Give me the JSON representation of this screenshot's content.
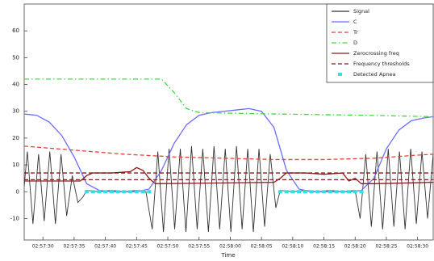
{
  "chart_data": {
    "type": "line",
    "x_label": "Time",
    "xlim": [
      0,
      65.5
    ],
    "ylim": [
      -18,
      70
    ],
    "xticks": [
      {
        "value": 3,
        "label": "02:57:30"
      },
      {
        "value": 8,
        "label": "02:57:35"
      },
      {
        "value": 13,
        "label": "02:57:40"
      },
      {
        "value": 18,
        "label": "02:57:45"
      },
      {
        "value": 23,
        "label": "02:57:50"
      },
      {
        "value": 28,
        "label": "02:57:55"
      },
      {
        "value": 33,
        "label": "02:58:00"
      },
      {
        "value": 38,
        "label": "02:58:05"
      },
      {
        "value": 43,
        "label": "02:58:10"
      },
      {
        "value": 48,
        "label": "02:58:15"
      },
      {
        "value": 53,
        "label": "02:58:20"
      },
      {
        "value": 58,
        "label": "02:58:25"
      },
      {
        "value": 63,
        "label": "02:58:30"
      }
    ],
    "yticks": [
      -10,
      0,
      10,
      20,
      30,
      40,
      50,
      60
    ],
    "legend": "upper right",
    "series": [
      {
        "name": "Signal",
        "color": "#333333",
        "style": "solid",
        "x": [
          0,
          0.5,
          1.4,
          2.3,
          3.2,
          4.1,
          5.0,
          5.9,
          6.8,
          7.7,
          8.6,
          9.4,
          10,
          12,
          14,
          16,
          18,
          19.5,
          20.5,
          21.4,
          22.3,
          23.2,
          24.1,
          25.0,
          25.9,
          26.8,
          27.7,
          28.6,
          29.5,
          30.4,
          31.3,
          32.2,
          33.1,
          34.0,
          34.9,
          35.8,
          36.7,
          37.6,
          38.5,
          39.4,
          40.3,
          41,
          43,
          45,
          47,
          49,
          51,
          53,
          53.8,
          54.7,
          55.6,
          56.5,
          57.4,
          58.3,
          59.2,
          60.1,
          61,
          61.9,
          62.8,
          63.7,
          64.6,
          65.5
        ],
        "values": [
          2,
          15,
          -12,
          14,
          -11,
          15,
          -12,
          14,
          -9,
          6,
          -4,
          -2,
          0.5,
          0,
          0.5,
          0,
          0.5,
          0,
          -14,
          15,
          -15,
          16,
          -14,
          16,
          -15,
          17,
          -14,
          16,
          -15,
          17,
          -14,
          16,
          -15,
          17,
          -14,
          16,
          -15,
          16,
          -13,
          14,
          -6,
          0.5,
          0,
          0.5,
          0,
          0.5,
          0,
          0.5,
          -10,
          14,
          -13,
          15,
          -14,
          16,
          -13,
          15,
          -14,
          16,
          -12,
          15,
          -10,
          14
        ]
      },
      {
        "name": "C",
        "color": "#6b6bff",
        "style": "solid",
        "x": [
          0,
          2,
          4,
          6,
          8,
          10,
          12,
          14,
          16,
          18,
          20,
          22,
          24,
          26,
          28,
          30,
          32,
          34,
          36,
          38,
          40,
          42,
          44,
          46,
          48,
          50,
          52,
          54,
          56,
          58,
          60,
          62,
          64,
          65.5
        ],
        "values": [
          29,
          28.5,
          26,
          21,
          13,
          3,
          0.5,
          0,
          0,
          0,
          1,
          8,
          18,
          25,
          28.5,
          29.5,
          30,
          30.5,
          31,
          30,
          24,
          8,
          1,
          0,
          0,
          0,
          0,
          0.5,
          5,
          16,
          23,
          26.5,
          27.5,
          28
        ]
      },
      {
        "name": "Tr",
        "color": "#e8403a",
        "style": "dashed",
        "x": [
          0,
          8,
          16,
          24,
          32,
          40,
          48,
          56,
          62,
          65.5
        ],
        "values": [
          17,
          15.5,
          14,
          13,
          12.5,
          12,
          12,
          12.5,
          13.5,
          14
        ]
      },
      {
        "name": "D",
        "color": "#3ddc3d",
        "style": "dashdot",
        "x": [
          0,
          22,
          24,
          26,
          28,
          40,
          55,
          65.5
        ],
        "values": [
          42,
          42,
          37,
          31,
          29.5,
          29,
          28.5,
          28
        ]
      },
      {
        "name": "Zerocrossing freq",
        "color": "#8b1a1a",
        "style": "solid",
        "x": [
          0,
          9,
          10,
          11,
          14,
          17,
          18,
          19,
          20,
          21,
          40,
          41,
          42,
          45,
          48,
          51,
          52,
          53,
          54,
          56,
          65.5
        ],
        "values": [
          4,
          4,
          6,
          7,
          7,
          7.5,
          9,
          8,
          5,
          3,
          3.5,
          5,
          7,
          7,
          6.5,
          7,
          4,
          5,
          3,
          3,
          3.5
        ]
      },
      {
        "name": "Frequency thresholds",
        "color": "#8b1a1a",
        "style": "dashed",
        "hlines": [
          7,
          4.5
        ]
      },
      {
        "name": "Detected Apnea",
        "color": "#33e0e0",
        "style": "markers",
        "x": [
          10,
          11,
          12,
          13,
          14,
          15,
          16,
          17,
          18,
          19,
          20,
          41,
          42,
          43,
          44,
          45,
          46,
          47,
          48,
          49,
          50,
          51,
          52,
          53,
          54
        ],
        "values": [
          0,
          0,
          0,
          0,
          0,
          0,
          0,
          0,
          0,
          0,
          0,
          0,
          0,
          0,
          0,
          0,
          0,
          0,
          0,
          0,
          0,
          0,
          0,
          0,
          0
        ]
      }
    ]
  }
}
